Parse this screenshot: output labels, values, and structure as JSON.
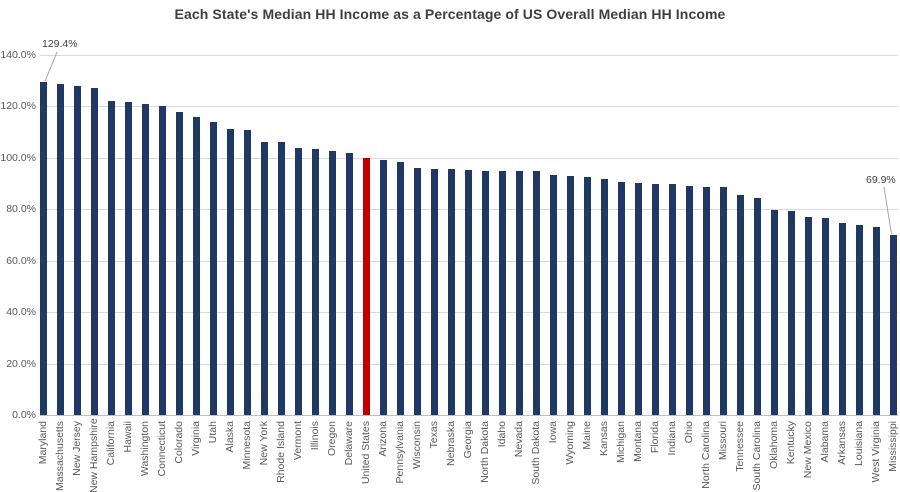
{
  "title": "Each State's Median HH Income as a Percentage of US Overall Median HH Income",
  "colors": {
    "bar": "#1F3864",
    "highlight": "#C00000",
    "gridline": "#D9D9D9",
    "axis_line": "#BFBFBF",
    "tick_text": "#595959",
    "title_text": "#3F3F3F",
    "annotation_text": "#404040",
    "leader_line": "#A6A6A6"
  },
  "chart_data": {
    "type": "bar",
    "title": "Each State's Median HH Income as a Percentage of US Overall Median HH Income",
    "xlabel": "",
    "ylabel": "",
    "ylim": [
      0,
      140
    ],
    "ytick_labels": [
      "0.0%",
      "20.0%",
      "40.0%",
      "60.0%",
      "80.0%",
      "100.0%",
      "120.0%",
      "140.0%"
    ],
    "grid": true,
    "legend": false,
    "highlight_category": "United States",
    "categories": [
      "Maryland",
      "Massachusetts",
      "New Jersey",
      "New Hampshire",
      "California",
      "Hawaii",
      "Washington",
      "Connecticut",
      "Colorado",
      "Virginia",
      "Utah",
      "Alaska",
      "Minnesota",
      "New York",
      "Rhode Island",
      "Vermont",
      "Illinois",
      "Oregon",
      "Delaware",
      "United States",
      "Arizona",
      "Pennsylvania",
      "Wisconsin",
      "Texas",
      "Nebraska",
      "Georgia",
      "North Dakota",
      "Idaho",
      "Nevada",
      "South Dakota",
      "Iowa",
      "Wyoming",
      "Maine",
      "Kansas",
      "Michigan",
      "Montana",
      "Florida",
      "Indiana",
      "Ohio",
      "North Carolina",
      "Missouri",
      "Tennessee",
      "South Carolina",
      "Oklahoma",
      "Kentucky",
      "New Mexico",
      "Alabama",
      "Arkansas",
      "Louisiana",
      "West Virginia",
      "Mississippi"
    ],
    "values": [
      129.4,
      128.8,
      127.9,
      127.0,
      122.0,
      121.9,
      120.8,
      120.1,
      117.9,
      116.0,
      113.9,
      111.4,
      110.7,
      106.3,
      106.0,
      103.8,
      103.4,
      102.6,
      101.8,
      100.0,
      99.0,
      98.6,
      95.9,
      95.8,
      95.7,
      95.3,
      95.1,
      95.0,
      94.9,
      94.8,
      93.5,
      93.1,
      92.6,
      91.7,
      90.8,
      90.4,
      90.0,
      89.8,
      89.0,
      88.6,
      88.5,
      85.5,
      84.5,
      79.8,
      79.4,
      77.2,
      76.6,
      74.7,
      74.0,
      73.1,
      69.9
    ],
    "annotations": [
      {
        "label": "129.4%",
        "target": "Maryland",
        "target_index": 0
      },
      {
        "label": "69.9%",
        "target": "Mississippi",
        "target_index": 50
      }
    ]
  }
}
